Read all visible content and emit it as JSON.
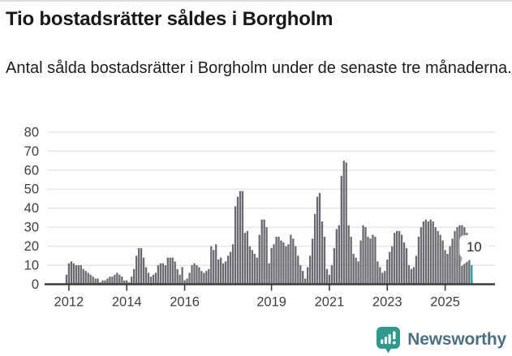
{
  "header": {
    "title": "Tio bostadsrätter såldes i Borgholm",
    "subtitle": "Antal sålda bostadsrätter i Borgholm under de senaste tre månaderna."
  },
  "footer": {
    "brand": "Newsworthy"
  },
  "chart_data": {
    "type": "bar",
    "title": "Antal sålda bostadsrätter i Borgholm, rullande tre månader",
    "xlabel": "",
    "ylabel": "",
    "ylim": [
      0,
      80
    ],
    "grid": true,
    "y_ticks": [
      0,
      10,
      20,
      30,
      40,
      50,
      60,
      70,
      80
    ],
    "x_tick_years": [
      2012,
      2014,
      2016,
      2019,
      2021,
      2023,
      2025
    ],
    "x_unit": "month",
    "start_month": "2011-12",
    "values": [
      5,
      11,
      12,
      11,
      10,
      10,
      10,
      8,
      7,
      6,
      5,
      4,
      3,
      3,
      1,
      2,
      2,
      3,
      4,
      4,
      5,
      6,
      5,
      4,
      2,
      2,
      1,
      4,
      8,
      15,
      19,
      19,
      14,
      9,
      6,
      4,
      5,
      6,
      10,
      11,
      11,
      10,
      14,
      14,
      14,
      12,
      8,
      5,
      9,
      2,
      3,
      6,
      10,
      11,
      10,
      9,
      7,
      6,
      7,
      8,
      20,
      18,
      21,
      13,
      14,
      11,
      12,
      15,
      17,
      21,
      41,
      46,
      49,
      49,
      27,
      28,
      20,
      18,
      16,
      14,
      26,
      34,
      34,
      30,
      11,
      19,
      21,
      25,
      25,
      23,
      22,
      20,
      21,
      26,
      24,
      20,
      15,
      10,
      7,
      3,
      9,
      15,
      24,
      37,
      46,
      48,
      33,
      25,
      8,
      5,
      10,
      19,
      29,
      31,
      57,
      65,
      64,
      31,
      25,
      16,
      14,
      12,
      23,
      31,
      30,
      25,
      24,
      26,
      25,
      12,
      9,
      6,
      7,
      13,
      17,
      20,
      27,
      28,
      28,
      26,
      22,
      19,
      10,
      8,
      9,
      15,
      25,
      30,
      33,
      34,
      33,
      34,
      33,
      30,
      28,
      26,
      23,
      18,
      16,
      20,
      24,
      28,
      30,
      31,
      31,
      30,
      27,
      24,
      10
    ],
    "highlight": {
      "last_bar_value": 10,
      "callout_label": "10"
    },
    "colors": {
      "bar": "#6a6a72",
      "highlight": "#1d9fa4",
      "grid": "#e4e4e4",
      "axis": "#3c3c3c",
      "tick_text": "#3f3f3f",
      "callout_text": "#2b2b2b",
      "logo_teal": "#30998b",
      "brand_text": "#4b7181"
    },
    "legend": null
  }
}
